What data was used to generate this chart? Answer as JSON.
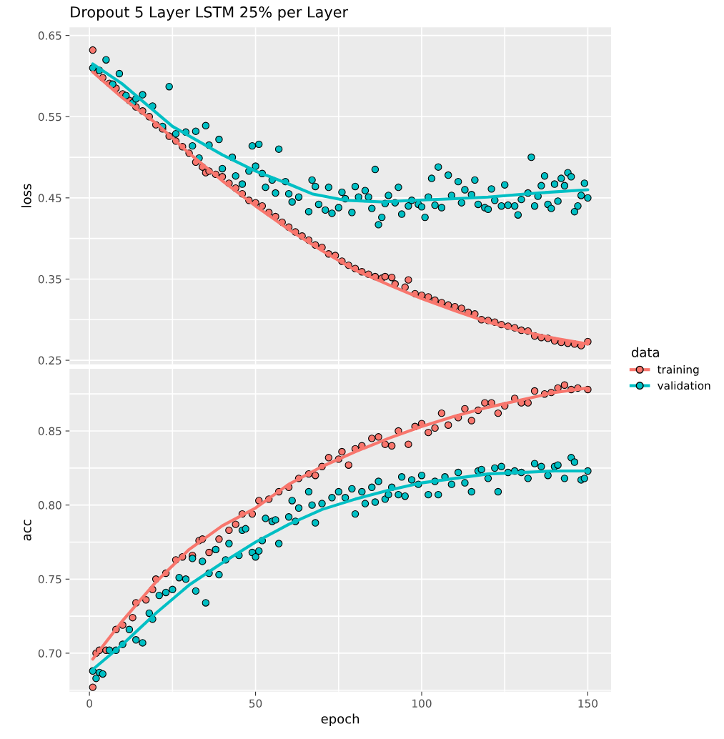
{
  "chart_data": [
    {
      "type": "scatter",
      "title": "Dropout 5 Layer LSTM 25% per Layer",
      "ylabel": "loss",
      "legend_title": "data",
      "legend": "right",
      "grid": true,
      "tick_labels": "y",
      "marker": "circle",
      "xlim": [
        -6,
        157
      ],
      "ylim": [
        0.245,
        0.66
      ],
      "xticks": [
        {
          "value": 0,
          "label": null
        },
        {
          "value": 25,
          "label": null
        },
        {
          "value": 50,
          "label": null
        },
        {
          "value": 75,
          "label": null
        },
        {
          "value": 100,
          "label": null
        },
        {
          "value": 125,
          "label": null
        },
        {
          "value": 150,
          "label": null
        }
      ],
      "yticks": [
        0.25,
        {
          "value": 0.3,
          "label": null
        },
        0.35,
        {
          "value": 0.4,
          "label": null
        },
        0.45,
        {
          "value": 0.5,
          "label": null
        },
        0.55,
        {
          "value": 0.6,
          "label": null
        },
        0.65
      ],
      "series": [
        {
          "name": "training",
          "color": "#f8766d",
          "x": [
            1,
            2,
            4,
            6,
            8,
            10,
            12,
            14,
            16,
            18,
            20,
            22,
            24,
            26,
            28,
            30,
            32,
            34,
            35,
            36,
            38,
            40,
            42,
            44,
            46,
            48,
            50,
            52,
            54,
            56,
            58,
            60,
            62,
            64,
            66,
            68,
            70,
            72,
            74,
            76,
            78,
            80,
            82,
            84,
            86,
            88,
            89,
            91,
            92,
            95,
            96,
            98,
            100,
            102,
            104,
            106,
            108,
            110,
            112,
            114,
            116,
            118,
            120,
            122,
            124,
            126,
            128,
            130,
            132,
            134,
            136,
            138,
            140,
            142,
            144,
            146,
            148,
            150
          ],
          "values": [
            0.632,
            0.607,
            0.598,
            0.591,
            0.585,
            0.578,
            0.57,
            0.562,
            0.557,
            0.55,
            0.54,
            0.535,
            0.526,
            0.52,
            0.513,
            0.505,
            0.494,
            0.488,
            0.481,
            0.483,
            0.479,
            0.476,
            0.468,
            0.462,
            0.455,
            0.447,
            0.444,
            0.44,
            0.432,
            0.427,
            0.42,
            0.414,
            0.408,
            0.403,
            0.398,
            0.392,
            0.389,
            0.381,
            0.379,
            0.372,
            0.367,
            0.363,
            0.359,
            0.356,
            0.353,
            0.351,
            0.353,
            0.352,
            0.344,
            0.34,
            0.349,
            0.332,
            0.33,
            0.328,
            0.324,
            0.321,
            0.318,
            0.316,
            0.314,
            0.309,
            0.307,
            0.3,
            0.299,
            0.297,
            0.294,
            0.292,
            0.29,
            0.287,
            0.286,
            0.28,
            0.278,
            0.277,
            0.274,
            0.272,
            0.271,
            0.27,
            0.268,
            0.273
          ]
        },
        {
          "name": "validation",
          "color": "#00bfc4",
          "x": [
            1,
            3,
            5,
            7,
            9,
            11,
            13,
            14,
            16,
            19,
            22,
            24,
            26,
            29,
            31,
            32,
            33,
            35,
            36,
            39,
            40,
            43,
            44,
            46,
            48,
            49,
            50,
            51,
            52,
            53,
            55,
            56,
            57,
            59,
            60,
            61,
            63,
            66,
            67,
            68,
            69,
            71,
            72,
            73,
            75,
            76,
            77,
            79,
            80,
            81,
            83,
            84,
            85,
            86,
            87,
            88,
            89,
            90,
            92,
            93,
            94,
            96,
            97,
            99,
            100,
            101,
            102,
            103,
            104,
            105,
            106,
            108,
            109,
            111,
            112,
            113,
            115,
            116,
            117,
            119,
            120,
            121,
            122,
            124,
            125,
            126,
            128,
            129,
            130,
            132,
            133,
            134,
            135,
            136,
            137,
            138,
            139,
            140,
            141,
            142,
            143,
            144,
            145,
            146,
            147,
            148,
            149,
            150
          ],
          "values": [
            0.61,
            0.607,
            0.62,
            0.59,
            0.603,
            0.576,
            0.567,
            0.572,
            0.577,
            0.563,
            0.538,
            0.587,
            0.529,
            0.531,
            0.514,
            0.532,
            0.499,
            0.539,
            0.515,
            0.522,
            0.486,
            0.5,
            0.477,
            0.467,
            0.483,
            0.514,
            0.489,
            0.516,
            0.48,
            0.463,
            0.472,
            0.456,
            0.51,
            0.47,
            0.455,
            0.445,
            0.451,
            0.433,
            0.472,
            0.464,
            0.442,
            0.435,
            0.463,
            0.431,
            0.438,
            0.457,
            0.449,
            0.432,
            0.464,
            0.451,
            0.459,
            0.451,
            0.437,
            0.485,
            0.417,
            0.426,
            0.443,
            0.453,
            0.444,
            0.463,
            0.43,
            0.44,
            0.447,
            0.442,
            0.439,
            0.426,
            0.451,
            0.474,
            0.441,
            0.488,
            0.438,
            0.478,
            0.453,
            0.47,
            0.444,
            0.46,
            0.454,
            0.472,
            0.442,
            0.438,
            0.436,
            0.461,
            0.447,
            0.44,
            0.466,
            0.441,
            0.44,
            0.429,
            0.448,
            0.456,
            0.5,
            0.44,
            0.452,
            0.465,
            0.477,
            0.442,
            0.437,
            0.467,
            0.446,
            0.474,
            0.465,
            0.481,
            0.476,
            0.433,
            0.44,
            0.453,
            0.468,
            0.45
          ]
        },
        {
          "type": "line",
          "marker": "none",
          "color": "#f8766d",
          "x": [
            1,
            10,
            20,
            30,
            40,
            50,
            60,
            70,
            80,
            90,
            100,
            110,
            120,
            130,
            140,
            150
          ],
          "values": [
            0.605,
            0.573,
            0.542,
            0.505,
            0.471,
            0.44,
            0.411,
            0.385,
            0.361,
            0.343,
            0.326,
            0.311,
            0.297,
            0.286,
            0.277,
            0.27
          ]
        },
        {
          "type": "line",
          "marker": "none",
          "color": "#00bfc4",
          "x": [
            1,
            10,
            25,
            40,
            50,
            60,
            67,
            77,
            88,
            98,
            110,
            120,
            135,
            150
          ],
          "values": [
            0.615,
            0.59,
            0.538,
            0.503,
            0.483,
            0.467,
            0.455,
            0.447,
            0.445,
            0.447,
            0.449,
            0.451,
            0.456,
            0.46
          ]
        }
      ]
    },
    {
      "type": "scatter",
      "xlabel": "epoch",
      "ylabel": "acc",
      "grid": true,
      "marker": "circle",
      "xlim": [
        -6,
        157
      ],
      "ylim": [
        0.674,
        0.892
      ],
      "xticks": [
        {
          "value": 0,
          "label": "0"
        },
        {
          "value": 25,
          "label": null
        },
        {
          "value": 50,
          "label": "50"
        },
        {
          "value": 75,
          "label": null
        },
        {
          "value": 100,
          "label": "100"
        },
        {
          "value": 125,
          "label": null
        },
        {
          "value": 150,
          "label": "150"
        }
      ],
      "yticks": [
        {
          "value": 0.675,
          "label": null
        },
        {
          "value": 0.7,
          "label": "0.70"
        },
        {
          "value": 0.725,
          "label": null
        },
        0.75,
        {
          "value": 0.775,
          "label": null
        },
        {
          "value": 0.8,
          "label": "0.80"
        },
        {
          "value": 0.825,
          "label": null
        },
        0.85,
        {
          "value": 0.875,
          "label": null
        }
      ],
      "series": [
        {
          "color": "#f8766d",
          "x": [
            1,
            2,
            3,
            5,
            8,
            10,
            13,
            14,
            17,
            19,
            20,
            23,
            26,
            28,
            31,
            33,
            34,
            36,
            38,
            39,
            42,
            44,
            46,
            49,
            51,
            54,
            57,
            60,
            63,
            66,
            68,
            70,
            72,
            75,
            76,
            78,
            80,
            82,
            85,
            87,
            89,
            91,
            93,
            96,
            98,
            100,
            102,
            104,
            106,
            108,
            111,
            113,
            115,
            117,
            119,
            121,
            123,
            125,
            128,
            130,
            132,
            134,
            137,
            139,
            141,
            143,
            145,
            147,
            150
          ],
          "values": [
            0.677,
            0.7,
            0.702,
            0.702,
            0.716,
            0.719,
            0.724,
            0.734,
            0.736,
            0.743,
            0.75,
            0.754,
            0.763,
            0.765,
            0.766,
            0.776,
            0.777,
            0.768,
            0.77,
            0.777,
            0.783,
            0.787,
            0.794,
            0.794,
            0.803,
            0.804,
            0.809,
            0.812,
            0.818,
            0.821,
            0.82,
            0.826,
            0.832,
            0.831,
            0.836,
            0.827,
            0.838,
            0.84,
            0.845,
            0.846,
            0.841,
            0.84,
            0.85,
            0.841,
            0.853,
            0.855,
            0.849,
            0.852,
            0.862,
            0.854,
            0.859,
            0.865,
            0.857,
            0.864,
            0.869,
            0.869,
            0.862,
            0.867,
            0.872,
            0.869,
            0.869,
            0.877,
            0.875,
            0.876,
            0.879,
            0.881,
            0.878,
            0.879,
            0.878
          ]
        },
        {
          "color": "#00bfc4",
          "x": [
            1,
            2,
            3,
            4,
            6,
            8,
            10,
            12,
            14,
            16,
            18,
            19,
            21,
            23,
            25,
            27,
            29,
            31,
            32,
            34,
            35,
            36,
            38,
            39,
            41,
            42,
            45,
            46,
            47,
            49,
            50,
            51,
            52,
            53,
            55,
            56,
            57,
            60,
            61,
            62,
            63,
            66,
            67,
            68,
            70,
            73,
            75,
            77,
            79,
            80,
            82,
            83,
            85,
            86,
            87,
            89,
            90,
            91,
            93,
            94,
            95,
            97,
            99,
            100,
            102,
            104,
            105,
            107,
            109,
            111,
            113,
            115,
            117,
            118,
            120,
            122,
            123,
            124,
            126,
            128,
            130,
            132,
            134,
            136,
            138,
            140,
            141,
            143,
            145,
            146,
            148,
            149,
            150
          ],
          "values": [
            0.688,
            0.683,
            0.687,
            0.686,
            0.702,
            0.702,
            0.706,
            0.716,
            0.709,
            0.707,
            0.727,
            0.723,
            0.739,
            0.741,
            0.743,
            0.751,
            0.75,
            0.764,
            0.742,
            0.762,
            0.734,
            0.754,
            0.77,
            0.753,
            0.763,
            0.774,
            0.766,
            0.783,
            0.784,
            0.768,
            0.765,
            0.769,
            0.776,
            0.791,
            0.789,
            0.79,
            0.774,
            0.792,
            0.803,
            0.789,
            0.798,
            0.809,
            0.8,
            0.788,
            0.801,
            0.805,
            0.809,
            0.805,
            0.811,
            0.794,
            0.809,
            0.801,
            0.812,
            0.802,
            0.816,
            0.804,
            0.807,
            0.812,
            0.807,
            0.819,
            0.806,
            0.817,
            0.814,
            0.82,
            0.807,
            0.816,
            0.807,
            0.819,
            0.814,
            0.822,
            0.815,
            0.809,
            0.823,
            0.824,
            0.818,
            0.825,
            0.809,
            0.826,
            0.822,
            0.823,
            0.822,
            0.818,
            0.828,
            0.826,
            0.82,
            0.826,
            0.827,
            0.818,
            0.832,
            0.829,
            0.817,
            0.818,
            0.823
          ]
        },
        {
          "type": "line",
          "marker": "none",
          "color": "#f8766d",
          "x": [
            1,
            10,
            20,
            30,
            40,
            50,
            60,
            70,
            80,
            90,
            100,
            110,
            120,
            130,
            140,
            150
          ],
          "values": [
            0.696,
            0.722,
            0.748,
            0.77,
            0.786,
            0.798,
            0.814,
            0.826,
            0.836,
            0.845,
            0.853,
            0.86,
            0.866,
            0.871,
            0.876,
            0.879
          ]
        },
        {
          "type": "line",
          "marker": "none",
          "color": "#00bfc4",
          "x": [
            1,
            10,
            20,
            30,
            40,
            50,
            60,
            70,
            80,
            90,
            100,
            110,
            120,
            130,
            140,
            150
          ],
          "values": [
            0.689,
            0.706,
            0.727,
            0.746,
            0.761,
            0.775,
            0.787,
            0.797,
            0.804,
            0.81,
            0.815,
            0.818,
            0.821,
            0.822,
            0.823,
            0.823
          ]
        }
      ]
    }
  ]
}
